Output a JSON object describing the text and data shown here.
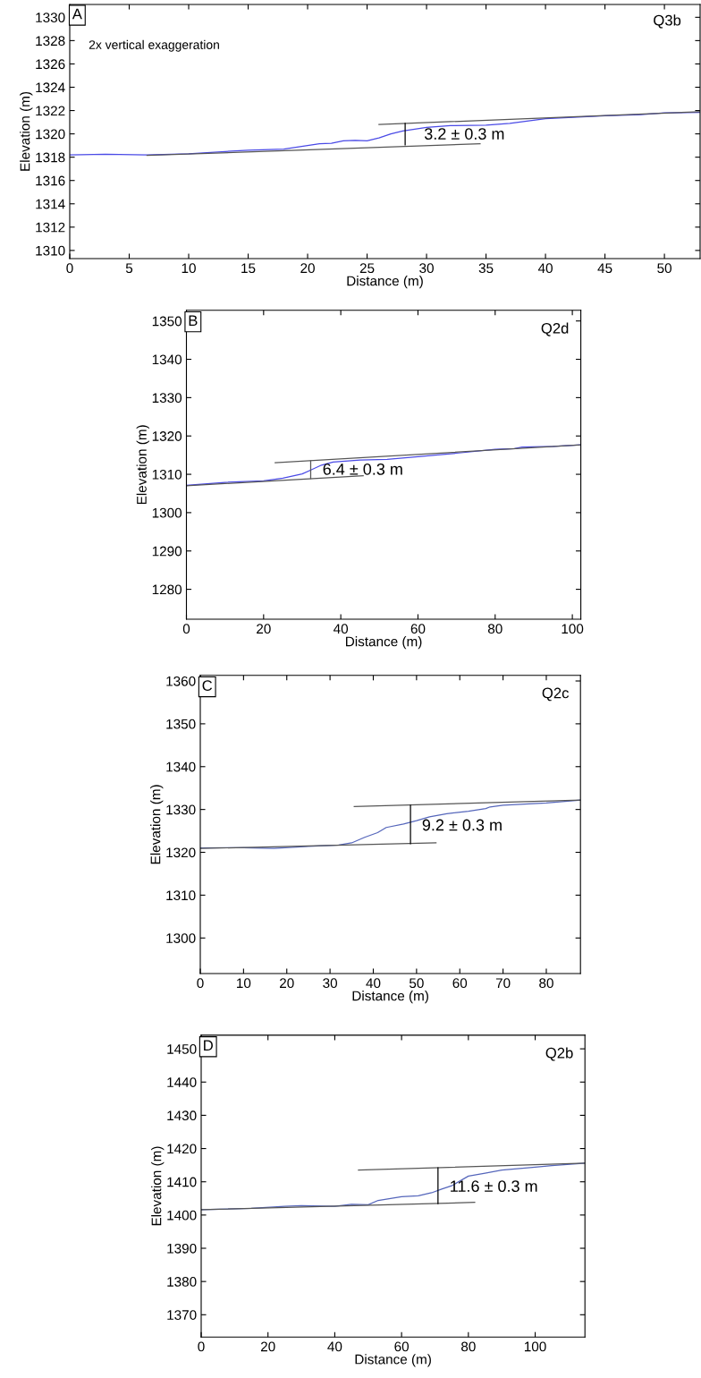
{
  "chart_data": [
    {
      "type": "line",
      "xlabel": "Distance (m)",
      "ylabel": "Elevation (m)",
      "xlim": [
        0,
        53
      ],
      "ylim": [
        1309.3,
        1331.1
      ],
      "xticks": [
        0,
        5,
        10,
        15,
        20,
        25,
        30,
        35,
        40,
        45,
        50
      ],
      "yticks": [
        1310,
        1312,
        1314,
        1316,
        1318,
        1320,
        1322,
        1324,
        1326,
        1328,
        1330
      ],
      "grid": false,
      "legend": false,
      "annotations": [
        "A",
        "Q3b",
        "2x vertical exaggeration",
        "3.2 ± 0.3 m"
      ],
      "series": [
        {
          "color": "#4a4ae6",
          "x": [
            0,
            3,
            6.5,
            10,
            15,
            18,
            20,
            21,
            22,
            23,
            24,
            25,
            26,
            27,
            28,
            30,
            32,
            35,
            37,
            40,
            45,
            48,
            50,
            53
          ],
          "values": [
            1318.2,
            1318.25,
            1318.2,
            1318.3,
            1318.6,
            1318.7,
            1319.0,
            1319.15,
            1319.2,
            1319.4,
            1319.45,
            1319.4,
            1319.65,
            1320.0,
            1320.25,
            1320.55,
            1320.7,
            1320.75,
            1320.9,
            1321.3,
            1321.55,
            1321.65,
            1321.8,
            1321.85
          ]
        },
        {
          "color": "#555555",
          "x": [
            6.5,
            34.5
          ],
          "values": [
            1318.15,
            1319.15
          ]
        },
        {
          "color": "#555555",
          "x": [
            26,
            53
          ],
          "values": [
            1320.8,
            1321.9
          ]
        },
        {
          "color": "#000000",
          "x": [
            28.2,
            28.2
          ],
          "values": [
            1319.05,
            1320.9
          ]
        }
      ]
    },
    {
      "type": "line",
      "xlabel": "Distance (m)",
      "ylabel": "Elevation (m)",
      "xlim": [
        0,
        102.2
      ],
      "ylim": [
        1272.2,
        1352.8
      ],
      "xticks": [
        0,
        20,
        40,
        60,
        80,
        100
      ],
      "yticks": [
        1280,
        1290,
        1300,
        1310,
        1320,
        1330,
        1340,
        1350
      ],
      "grid": false,
      "legend": false,
      "annotations": [
        "B",
        "Q2d",
        "6.4 ± 0.3 m"
      ],
      "series": [
        {
          "color": "#4a4ae6",
          "x": [
            0,
            10,
            20,
            25,
            30,
            32,
            35,
            38,
            45,
            52,
            60,
            70,
            80,
            85,
            87,
            95,
            102.2
          ],
          "values": [
            1307.1,
            1307.9,
            1308.3,
            1309.0,
            1310.1,
            1311.0,
            1312.4,
            1313.2,
            1313.7,
            1313.9,
            1314.6,
            1315.5,
            1316.5,
            1316.7,
            1317.1,
            1317.3,
            1317.7
          ]
        },
        {
          "color": "#555555",
          "x": [
            0,
            45.8
          ],
          "values": [
            1307.0,
            1309.6
          ]
        },
        {
          "color": "#555555",
          "x": [
            23,
            102.2
          ],
          "values": [
            1313.0,
            1317.7
          ]
        },
        {
          "color": "#555555",
          "x": [
            32.2,
            32.2
          ],
          "values": [
            1308.9,
            1313.5
          ]
        }
      ]
    },
    {
      "type": "line",
      "xlabel": "Distance (m)",
      "ylabel": "Elevation (m)",
      "xlim": [
        0,
        87.9
      ],
      "ylim": [
        1291.7,
        1361.3
      ],
      "xticks": [
        0,
        10,
        20,
        30,
        40,
        50,
        60,
        70,
        80
      ],
      "yticks": [
        1300,
        1310,
        1320,
        1330,
        1340,
        1350,
        1360
      ],
      "grid": false,
      "legend": false,
      "annotations": [
        "C",
        "Q2c",
        "9.2 ± 0.3 m"
      ],
      "series": [
        {
          "color": "#5566bb",
          "x": [
            0,
            10,
            17,
            25,
            32,
            35,
            38,
            41,
            43,
            47,
            50,
            53,
            57,
            62,
            66,
            67,
            70,
            80,
            87.9
          ],
          "values": [
            1321.0,
            1321.1,
            1320.9,
            1321.4,
            1321.7,
            1322.2,
            1323.5,
            1324.6,
            1325.8,
            1326.6,
            1327.4,
            1328.3,
            1329.0,
            1329.6,
            1330.2,
            1330.6,
            1331.0,
            1331.5,
            1332.2
          ]
        },
        {
          "color": "#555555",
          "x": [
            0,
            54.5
          ],
          "values": [
            1320.9,
            1322.2
          ]
        },
        {
          "color": "#555555",
          "x": [
            35.6,
            87.9
          ],
          "values": [
            1330.7,
            1332.2
          ]
        },
        {
          "color": "#000000",
          "x": [
            48.6,
            48.6
          ],
          "values": [
            1322.0,
            1331.0
          ]
        }
      ]
    },
    {
      "type": "line",
      "xlabel": "Distance (m)",
      "ylabel": "Elevation (m)",
      "xlim": [
        0,
        114.9
      ],
      "ylim": [
        1363.3,
        1454.1
      ],
      "xticks": [
        0,
        20,
        40,
        60,
        80,
        100
      ],
      "yticks": [
        1370,
        1380,
        1390,
        1400,
        1410,
        1420,
        1430,
        1440,
        1450
      ],
      "grid": false,
      "legend": false,
      "annotations": [
        "D",
        "Q2b",
        "11.6 ± 0.3 m"
      ],
      "series": [
        {
          "color": "#5566bb",
          "x": [
            0,
            15,
            25,
            30,
            40,
            45,
            50,
            53,
            60,
            65,
            69,
            72,
            75,
            80,
            85,
            90,
            100,
            105,
            114.9
          ],
          "values": [
            1401.6,
            1402.0,
            1402.6,
            1402.8,
            1402.6,
            1403.2,
            1403.1,
            1404.4,
            1405.5,
            1405.8,
            1406.7,
            1407.8,
            1408.8,
            1411.7,
            1412.6,
            1413.5,
            1414.4,
            1414.9,
            1415.6
          ]
        },
        {
          "color": "#555555",
          "x": [
            0,
            81.9
          ],
          "values": [
            1401.6,
            1403.8
          ]
        },
        {
          "color": "#555555",
          "x": [
            47.1,
            114.9
          ],
          "values": [
            1413.5,
            1415.6
          ]
        },
        {
          "color": "#000000",
          "x": [
            70.9,
            70.9
          ],
          "values": [
            1403.4,
            1414.2
          ]
        }
      ]
    }
  ]
}
